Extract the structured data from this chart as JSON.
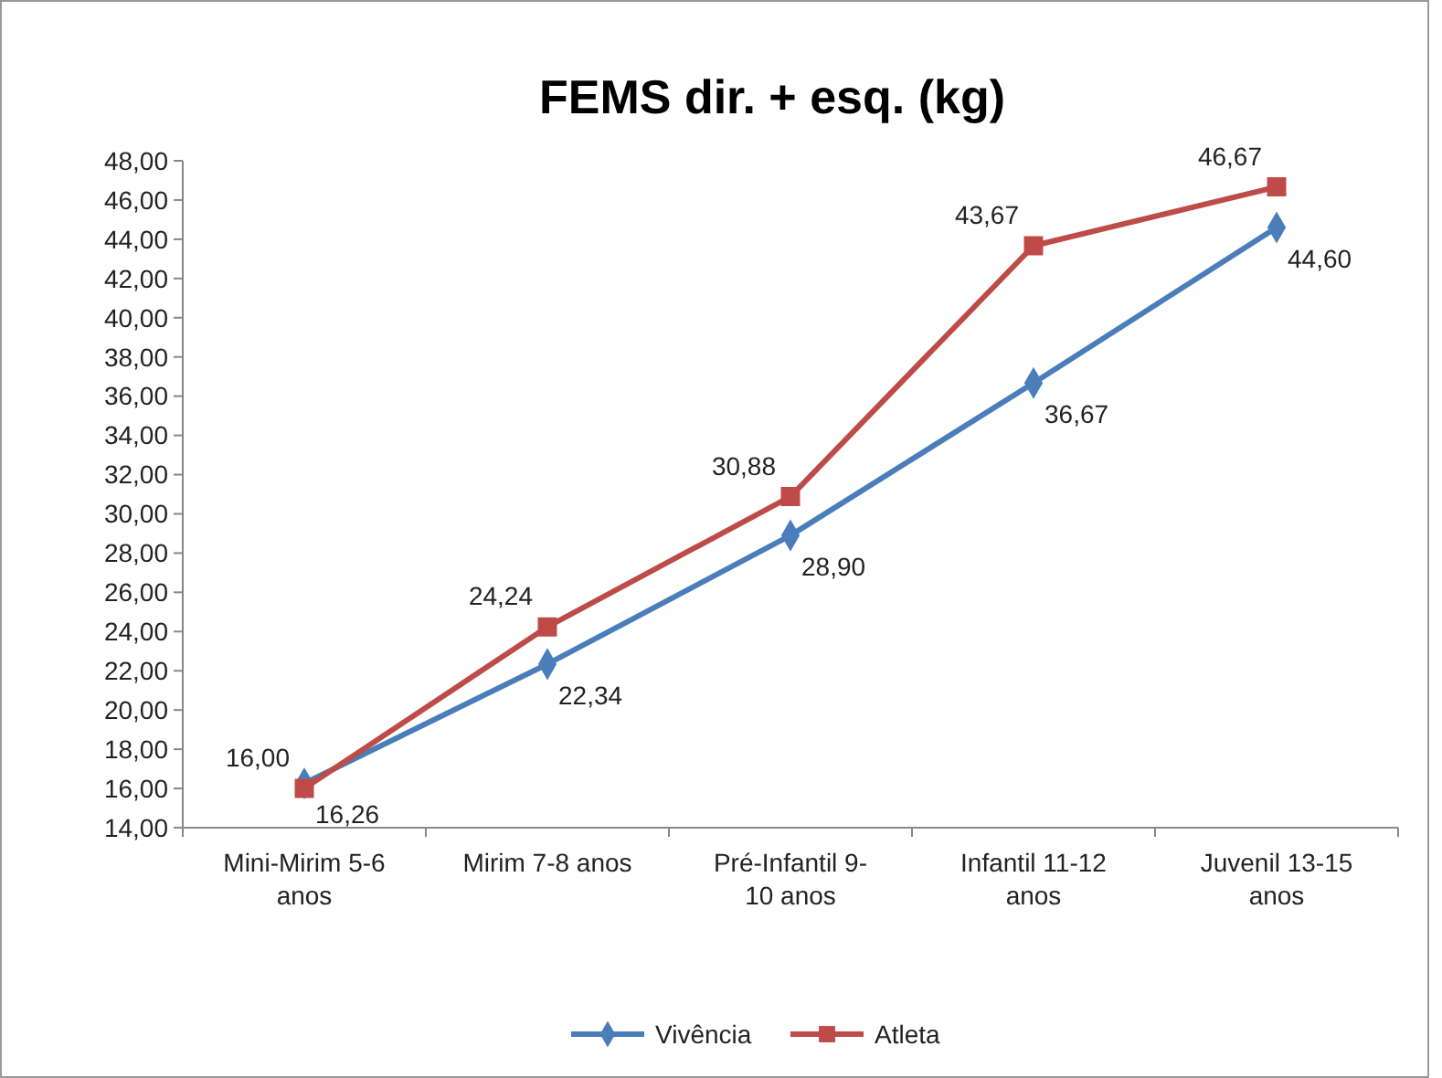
{
  "chart_data": {
    "type": "line",
    "title": "FEMS dir. + esq. (kg)",
    "categories": [
      "Mini-Mirim  5-6 anos",
      "Mirim 7-8 anos",
      "Pré-Infantil  9-10 anos",
      "Infantil 11-12 anos",
      "Juvenil 13-15 anos"
    ],
    "series": [
      {
        "name": "Vivência",
        "color": "#4a7ebb",
        "marker": "diamond",
        "values": [
          16.26,
          22.34,
          28.9,
          36.67,
          44.6
        ],
        "value_labels": [
          "16,26",
          "22,34",
          "28,90",
          "36,67",
          "44,60"
        ]
      },
      {
        "name": "Atleta",
        "color": "#be4b48",
        "marker": "square",
        "values": [
          16.0,
          24.24,
          30.88,
          43.67,
          46.67
        ],
        "value_labels": [
          "16,00",
          "24,24",
          "30,88",
          "43,67",
          "46,67"
        ]
      }
    ],
    "ylim": [
      14,
      48
    ],
    "yticks": [
      {
        "value": 14,
        "label": "14,00"
      },
      {
        "value": 16,
        "label": "16,00"
      },
      {
        "value": 18,
        "label": "18,00"
      },
      {
        "value": 20,
        "label": "20,00"
      },
      {
        "value": 22,
        "label": "22,00"
      },
      {
        "value": 24,
        "label": "24,00"
      },
      {
        "value": 26,
        "label": "26,00"
      },
      {
        "value": 28,
        "label": "28,00"
      },
      {
        "value": 30,
        "label": "30,00"
      },
      {
        "value": 32,
        "label": "32,00"
      },
      {
        "value": 34,
        "label": "34,00"
      },
      {
        "value": 36,
        "label": "36,00"
      },
      {
        "value": 38,
        "label": "38,00"
      },
      {
        "value": 40,
        "label": "40,00"
      },
      {
        "value": 42,
        "label": "42,00"
      },
      {
        "value": 44,
        "label": "44,00"
      },
      {
        "value": 46,
        "label": "46,00"
      },
      {
        "value": 48,
        "label": "48,00"
      }
    ],
    "grid": false,
    "legend": "bottom",
    "line_style": "solid"
  }
}
